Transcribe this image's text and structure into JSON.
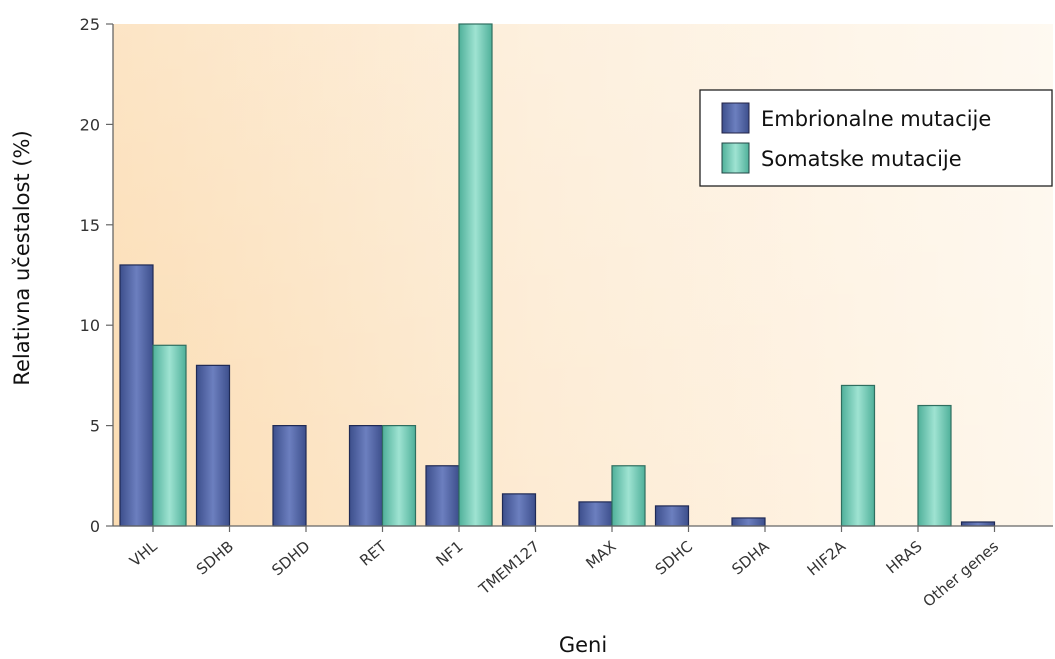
{
  "chart_data": {
    "type": "bar",
    "xlabel": "Geni",
    "ylabel": "Relativna učestalost (%)",
    "ylim": [
      0,
      25
    ],
    "yticks": [
      0,
      5,
      10,
      15,
      20,
      25
    ],
    "categories": [
      "VHL",
      "SDHB",
      "SDHD",
      "RET",
      "NF1",
      "TMEM127",
      "MAX",
      "SDHC",
      "SDHA",
      "HIF2A",
      "HRAS",
      "Other genes"
    ],
    "series": [
      {
        "name": "Embrionalne mutacije",
        "color": "#4a5f9e",
        "values": [
          13,
          8,
          5,
          5,
          3,
          1.6,
          1.2,
          1,
          0.4,
          0,
          0,
          0.2
        ]
      },
      {
        "name": "Somatske mutacije",
        "color": "#5fbfa8",
        "values": [
          9,
          0,
          0,
          5,
          25,
          0,
          3,
          0,
          0,
          7,
          6,
          0
        ]
      }
    ],
    "legend_position": "top-right",
    "grid": false
  }
}
